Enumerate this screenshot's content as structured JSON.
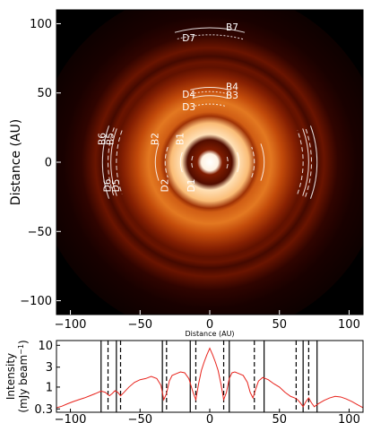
{
  "chart_data": [
    {
      "type": "image",
      "xlabel": "Distance (AU)",
      "ylabel": "Distance (AU)",
      "xlim": [
        -110,
        110
      ],
      "ylim": [
        -110,
        110
      ],
      "xticks": [
        -100,
        -50,
        0,
        50,
        100
      ],
      "yticks": [
        -100,
        -50,
        0,
        50,
        100
      ],
      "colormap": [
        "#000000",
        "#2a0200",
        "#7a1800",
        "#c24a0a",
        "#f08a2a",
        "#ffd49a",
        "#ffffff"
      ],
      "rings": [
        {
          "r": 0,
          "level": 1.0
        },
        {
          "r": 6,
          "level": 0.95
        },
        {
          "r": 9,
          "level": 0.35
        },
        {
          "r": 16,
          "level": 0.25
        },
        {
          "r": 20,
          "level": 0.88
        },
        {
          "r": 28,
          "level": 0.78
        },
        {
          "r": 33,
          "level": 0.42
        },
        {
          "r": 36,
          "level": 0.55
        },
        {
          "r": 44,
          "level": 0.62
        },
        {
          "r": 52,
          "level": 0.5
        },
        {
          "r": 62,
          "level": 0.36
        },
        {
          "r": 68,
          "level": 0.28
        },
        {
          "r": 72,
          "level": 0.3
        },
        {
          "r": 76,
          "level": 0.22
        },
        {
          "r": 82,
          "level": 0.3
        },
        {
          "r": 92,
          "level": 0.18
        },
        {
          "r": 105,
          "level": 0.1
        },
        {
          "r": 125,
          "level": 0.05
        }
      ],
      "features": [
        {
          "name": "D1",
          "type": "dark",
          "r": 13
        },
        {
          "name": "B1",
          "type": "bright",
          "r": 21
        },
        {
          "name": "D2",
          "type": "dark",
          "r": 32
        },
        {
          "name": "B2",
          "type": "bright",
          "r": 39
        },
        {
          "name": "D3",
          "type": "dark",
          "r": 42
        },
        {
          "name": "B3",
          "type": "bright",
          "r": 48
        },
        {
          "name": "D4",
          "type": "dark",
          "r": 51
        },
        {
          "name": "B4",
          "type": "bright",
          "r": 54
        },
        {
          "name": "D5",
          "type": "dark",
          "r": 67
        },
        {
          "name": "B5",
          "type": "bright",
          "r": 71
        },
        {
          "name": "D6",
          "type": "dark",
          "r": 73
        },
        {
          "name": "B6",
          "type": "bright",
          "r": 77
        },
        {
          "name": "D7",
          "type": "dark",
          "r": 92
        },
        {
          "name": "B7",
          "type": "bright",
          "r": 97
        }
      ]
    },
    {
      "type": "line",
      "xlabel": "",
      "ylabel": "Intensity (mJy beam⁻¹)",
      "ylabel_main": "Intensity",
      "ylabel_unit": "(mJy beam",
      "ylabel_sup": "−1",
      "ylabel_close": ")",
      "yscale": "log",
      "xlim": [
        -110,
        110
      ],
      "ylim": [
        0.25,
        13
      ],
      "xticks": [
        -100,
        -50,
        0,
        50,
        100
      ],
      "yticks": [
        0.3,
        1,
        3,
        10
      ],
      "ytick_labels": [
        "0.3",
        "1",
        "3",
        "10"
      ],
      "line_color": "#e8231c",
      "solid_lines_x": [
        -78,
        -67,
        -34,
        -14,
        14,
        39,
        67,
        77
      ],
      "dashed_lines_x": [
        -73,
        -64,
        -31,
        -10,
        10,
        32,
        62,
        71
      ],
      "series": [
        {
          "x": [
            -110,
            -106,
            -102,
            -98,
            -94,
            -90,
            -86,
            -82,
            -78,
            -75,
            -72,
            -70,
            -68,
            -66,
            -64,
            -62,
            -58,
            -54,
            -50,
            -46,
            -42,
            -38,
            -35,
            -33,
            -31,
            -29,
            -27,
            -24,
            -21,
            -18,
            -15,
            -12,
            -10,
            -8,
            -6,
            -4,
            -2,
            0,
            2,
            4,
            6,
            8,
            10,
            12,
            14,
            16,
            18,
            21,
            24,
            27,
            29,
            31,
            33,
            35,
            38,
            42,
            46,
            50,
            54,
            58,
            61,
            63,
            65,
            67,
            69,
            71,
            73,
            75,
            78,
            82,
            86,
            90,
            94,
            98,
            102,
            106,
            110
          ],
          "y": [
            0.32,
            0.35,
            0.4,
            0.45,
            0.5,
            0.55,
            0.62,
            0.7,
            0.8,
            0.75,
            0.62,
            0.7,
            0.82,
            0.75,
            0.62,
            0.72,
            1.0,
            1.3,
            1.5,
            1.6,
            1.8,
            1.6,
            1.1,
            0.5,
            0.7,
            1.4,
            1.9,
            2.1,
            2.3,
            2.2,
            1.6,
            0.75,
            0.5,
            1.2,
            2.5,
            4.0,
            6.0,
            8.5,
            6.0,
            4.0,
            2.5,
            1.2,
            0.5,
            0.75,
            1.6,
            2.2,
            2.3,
            2.1,
            1.9,
            1.3,
            0.75,
            0.55,
            0.9,
            1.4,
            1.7,
            1.5,
            1.2,
            1.0,
            0.75,
            0.6,
            0.55,
            0.5,
            0.42,
            0.34,
            0.45,
            0.55,
            0.42,
            0.34,
            0.4,
            0.48,
            0.55,
            0.6,
            0.58,
            0.52,
            0.45,
            0.38,
            0.32
          ]
        }
      ]
    }
  ]
}
